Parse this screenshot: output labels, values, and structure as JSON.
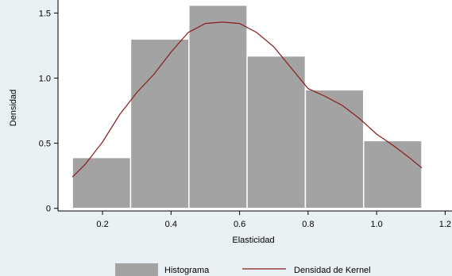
{
  "chart_data": {
    "type": "bar",
    "title": "",
    "xlabel": "Elasticidad",
    "ylabel": "Densidad",
    "xlim": [
      0.07,
      1.22
    ],
    "ylim": [
      -0.02,
      1.6
    ],
    "x_ticks": [
      0.2,
      0.4,
      0.6,
      0.8,
      1.0,
      1.2
    ],
    "x_tick_labels": [
      "0.2",
      "0.4",
      "0.6",
      "0.8",
      "1.0",
      "1.2"
    ],
    "y_ticks": [
      0,
      0.5,
      1.0,
      1.5
    ],
    "y_tick_labels": [
      "0",
      "0.5",
      "1.0",
      "1.5"
    ],
    "grid": false,
    "legend_position": "bottom",
    "histogram": {
      "name": "Histograma",
      "color": "#a3a3a3",
      "bins": [
        {
          "x0": 0.112,
          "x1": 0.282,
          "density": 0.39
        },
        {
          "x0": 0.282,
          "x1": 0.452,
          "density": 1.3
        },
        {
          "x0": 0.452,
          "x1": 0.622,
          "density": 1.56
        },
        {
          "x0": 0.622,
          "x1": 0.792,
          "density": 1.17
        },
        {
          "x0": 0.792,
          "x1": 0.962,
          "density": 0.91
        },
        {
          "x0": 0.962,
          "x1": 1.132,
          "density": 0.52
        }
      ]
    },
    "kde": {
      "name": "Densidad de Kernel",
      "color": "#8b1a1a",
      "x": [
        0.112,
        0.15,
        0.2,
        0.25,
        0.3,
        0.35,
        0.4,
        0.45,
        0.5,
        0.55,
        0.6,
        0.65,
        0.7,
        0.75,
        0.8,
        0.85,
        0.9,
        0.95,
        1.0,
        1.05,
        1.1,
        1.132
      ],
      "y": [
        0.24,
        0.34,
        0.51,
        0.72,
        0.89,
        1.03,
        1.2,
        1.35,
        1.42,
        1.43,
        1.42,
        1.35,
        1.24,
        1.08,
        0.92,
        0.86,
        0.79,
        0.69,
        0.57,
        0.48,
        0.38,
        0.31
      ]
    }
  }
}
